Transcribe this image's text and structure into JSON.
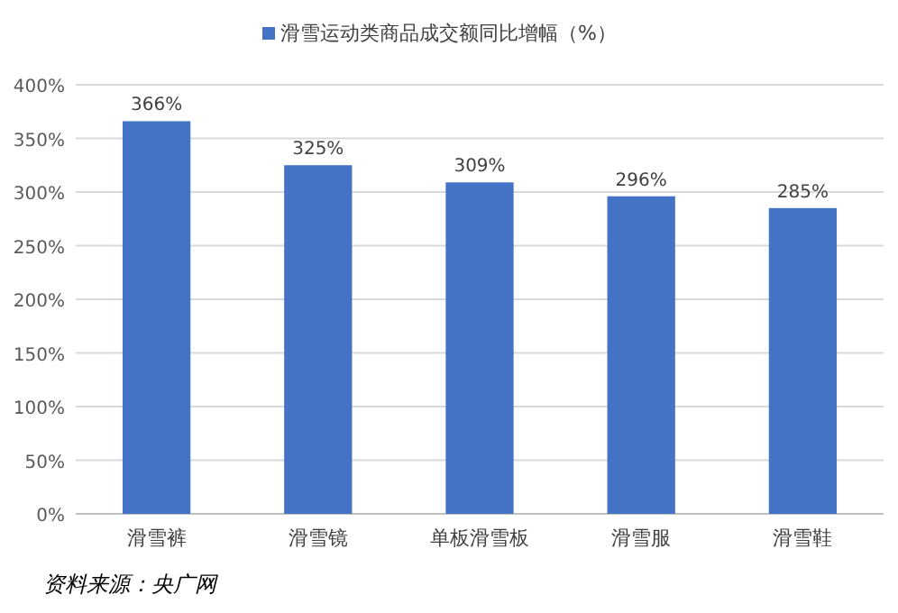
{
  "chart_data": {
    "type": "bar",
    "categories": [
      "滑雪裤",
      "滑雪镜",
      "单板滑雪板",
      "滑雪服",
      "滑雪鞋"
    ],
    "series": [
      {
        "name": "滑雪运动类商品成交额同比增幅（%）",
        "color": "#4472c4",
        "values": [
          366,
          325,
          309,
          296,
          285
        ],
        "value_labels": [
          "366%",
          "325%",
          "309%",
          "296%",
          "285%"
        ]
      }
    ],
    "ylim": [
      0,
      400
    ],
    "yticks": [
      {
        "value": 0,
        "label": "0%"
      },
      {
        "value": 50,
        "label": "50%"
      },
      {
        "value": 100,
        "label": "100%"
      },
      {
        "value": 150,
        "label": "150%"
      },
      {
        "value": 200,
        "label": "200%"
      },
      {
        "value": 250,
        "label": "250%"
      },
      {
        "value": 300,
        "label": "300%"
      },
      {
        "value": 350,
        "label": "350%"
      },
      {
        "value": 400,
        "label": "400%"
      }
    ],
    "grid": "y",
    "legend": "top",
    "annotations": [
      "资料来源：央广网"
    ]
  }
}
